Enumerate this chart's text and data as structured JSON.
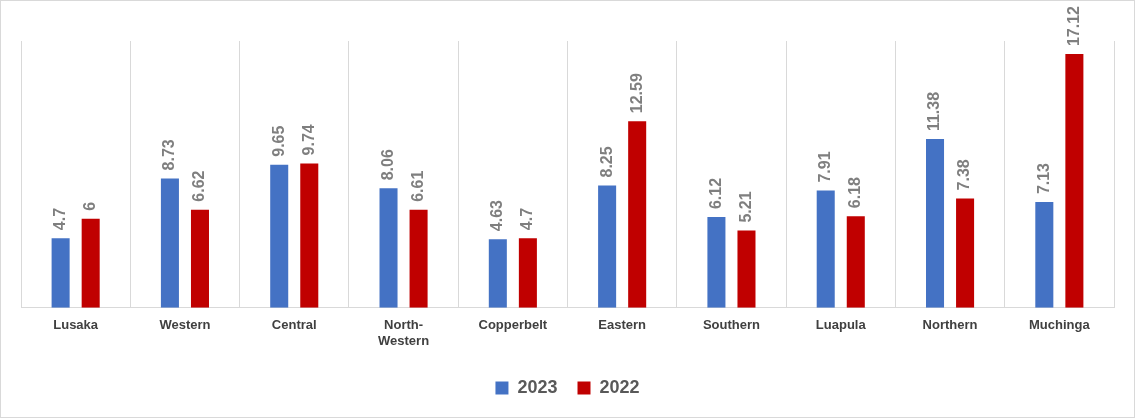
{
  "chart_data": {
    "type": "bar",
    "categories": [
      "Lusaka",
      "Western",
      "Central",
      "North-Western",
      "Copperbelt",
      "Eastern",
      "Southern",
      "Luapula",
      "Northern",
      "Muchinga"
    ],
    "series": [
      {
        "name": "2023",
        "color": "#4472c4",
        "values": [
          4.7,
          8.73,
          9.65,
          8.06,
          4.63,
          8.25,
          6.12,
          7.91,
          11.38,
          7.13
        ]
      },
      {
        "name": "2022",
        "color": "#c00000",
        "values": [
          6,
          6.62,
          9.74,
          6.61,
          4.7,
          12.59,
          5.21,
          6.18,
          7.38,
          17.12
        ]
      }
    ],
    "data_labels": true,
    "grid": "x",
    "legend": "bottom",
    "tick_labels": "x"
  }
}
